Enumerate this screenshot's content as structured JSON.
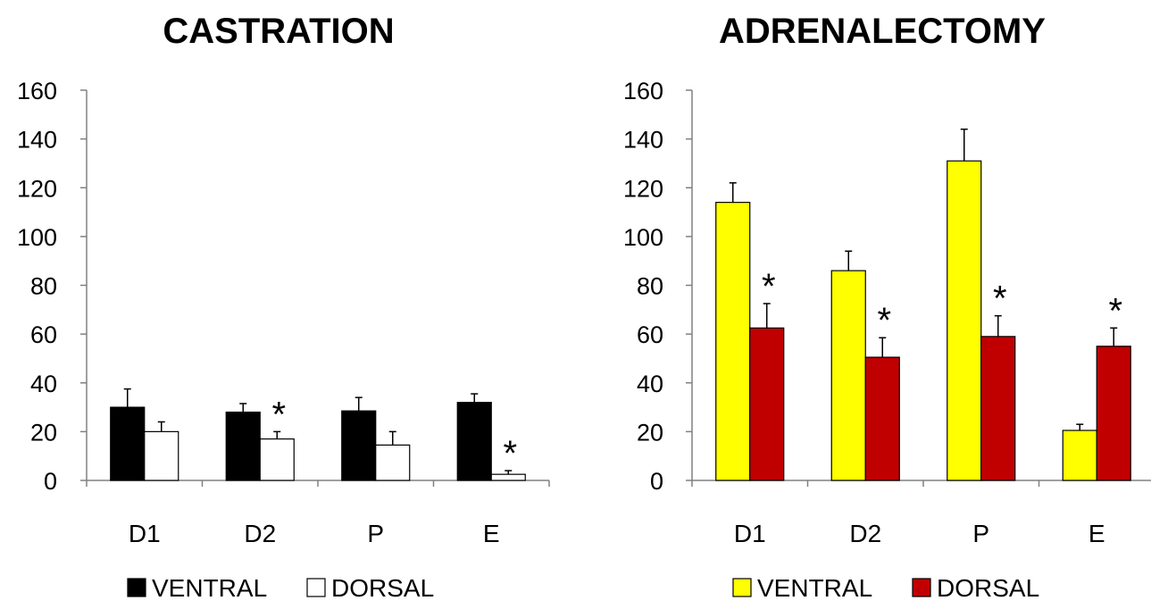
{
  "chart_data": [
    {
      "type": "bar",
      "title": "CASTRATION",
      "categories": [
        "D1",
        "D2",
        "P",
        "E"
      ],
      "ylim": [
        0,
        160
      ],
      "yticks": [
        0,
        20,
        40,
        60,
        80,
        100,
        120,
        140,
        160
      ],
      "grid": false,
      "legend_position": "bottom",
      "series": [
        {
          "name": "VENTRAL",
          "color": "#000000",
          "values": [
            30,
            28,
            28.5,
            32
          ],
          "errors": [
            7.5,
            3.5,
            5.5,
            3.5
          ]
        },
        {
          "name": "DORSAL",
          "color": "#ffffff",
          "values": [
            20,
            17,
            14.5,
            2.5
          ],
          "errors": [
            4,
            3,
            5.5,
            1.5
          ]
        }
      ],
      "annotations": [
        {
          "text": "*",
          "category": "D2",
          "series": "DORSAL"
        },
        {
          "text": "*",
          "category": "E",
          "series": "DORSAL"
        }
      ]
    },
    {
      "type": "bar",
      "title": "ADRENALECTOMY",
      "categories": [
        "D1",
        "D2",
        "P",
        "E"
      ],
      "ylim": [
        0,
        160
      ],
      "yticks": [
        0,
        20,
        40,
        60,
        80,
        100,
        120,
        140,
        160
      ],
      "grid": false,
      "legend_position": "bottom",
      "series": [
        {
          "name": "VENTRAL",
          "color": "#ffff00",
          "values": [
            114,
            86,
            131,
            20.5
          ],
          "errors": [
            8,
            8,
            13,
            2.5
          ]
        },
        {
          "name": "DORSAL",
          "color": "#c00000",
          "values": [
            62.5,
            50.5,
            59,
            55
          ],
          "errors": [
            10,
            8,
            8.5,
            7.5
          ]
        }
      ],
      "annotations": [
        {
          "text": "*",
          "category": "D1",
          "series": "DORSAL"
        },
        {
          "text": "*",
          "category": "D2",
          "series": "DORSAL"
        },
        {
          "text": "*",
          "category": "P",
          "series": "DORSAL"
        },
        {
          "text": "*",
          "category": "E",
          "series": "DORSAL"
        }
      ]
    }
  ]
}
